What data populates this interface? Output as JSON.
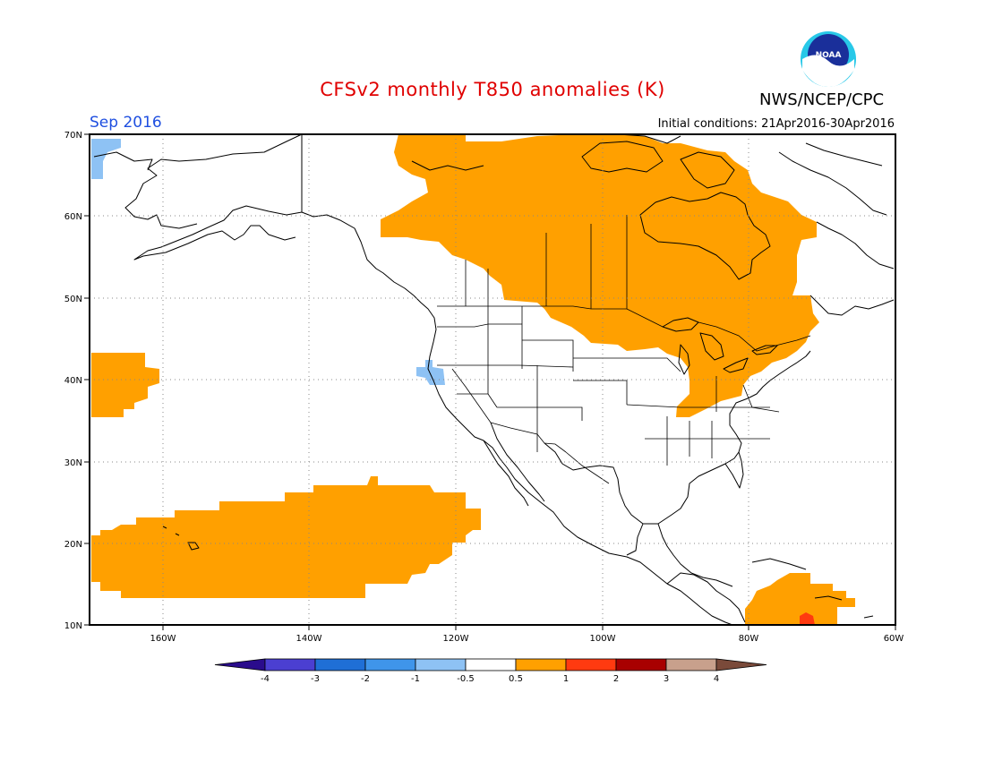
{
  "header": {
    "title": "CFSv2 monthly T850 anomalies (K)",
    "agency": "NWS/NCEP/CPC",
    "month": "Sep 2016",
    "initial_conditions": "Initial conditions: 21Apr2016-30Apr2016",
    "logo_text": "NOAA"
  },
  "axes": {
    "lon_labels": [
      "160W",
      "140W",
      "120W",
      "100W",
      "80W",
      "60W"
    ],
    "lat_labels": [
      "70N",
      "60N",
      "50N",
      "40N",
      "30N",
      "20N",
      "10N"
    ]
  },
  "colorbar": {
    "labels": [
      "-4",
      "-3",
      "-2",
      "-1",
      "-0.5",
      "0.5",
      "1",
      "2",
      "3",
      "4"
    ],
    "colors": [
      "#2a0c8c",
      "#4b3fd1",
      "#1f6fd6",
      "#3f95ea",
      "#8ec2f4",
      "#ffffff",
      "#ffa000",
      "#ff3a10",
      "#a80000",
      "#c8a08c",
      "#7a4a3a"
    ]
  },
  "map_colors": {
    "warm_0_5_to_1": "#ffa000",
    "warm_1_to_2": "#ff3a10",
    "cool_0_5_to_1": "#8ec2f4"
  }
}
